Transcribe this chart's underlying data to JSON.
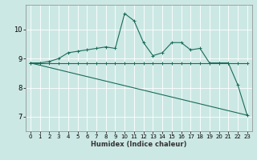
{
  "xlabel": "Humidex (Indice chaleur)",
  "bg_color": "#cce8e4",
  "line_color": "#1a6b5a",
  "grid_color": "#ffffff",
  "xlim": [
    -0.5,
    23.5
  ],
  "ylim": [
    6.5,
    10.85
  ],
  "yticks": [
    7,
    8,
    9,
    10
  ],
  "xticks": [
    0,
    1,
    2,
    3,
    4,
    5,
    6,
    7,
    8,
    9,
    10,
    11,
    12,
    13,
    14,
    15,
    16,
    17,
    18,
    19,
    20,
    21,
    22,
    23
  ],
  "line1_x": [
    0,
    1,
    2,
    3,
    4,
    5,
    6,
    7,
    8,
    9,
    10,
    11,
    12,
    13,
    14,
    15,
    16,
    17,
    18,
    19,
    20,
    21,
    22,
    23
  ],
  "line1_y": [
    8.85,
    8.85,
    8.9,
    9.0,
    9.2,
    9.25,
    9.3,
    9.35,
    9.4,
    9.35,
    10.55,
    10.3,
    9.55,
    9.1,
    9.2,
    9.55,
    9.55,
    9.3,
    9.35,
    8.85,
    8.85,
    8.85,
    8.1,
    7.05
  ],
  "line2_x": [
    0,
    1,
    2,
    3,
    4,
    5,
    6,
    7,
    8,
    9,
    10,
    11,
    12,
    13,
    14,
    15,
    16,
    17,
    18,
    19,
    20,
    21,
    22,
    23
  ],
  "line2_y": [
    8.85,
    8.85,
    8.85,
    8.85,
    8.85,
    8.85,
    8.85,
    8.85,
    8.85,
    8.85,
    8.85,
    8.85,
    8.85,
    8.85,
    8.85,
    8.85,
    8.85,
    8.85,
    8.85,
    8.85,
    8.85,
    8.85,
    8.85,
    8.85
  ],
  "line3_x": [
    0,
    23
  ],
  "line3_y": [
    8.85,
    7.05
  ]
}
